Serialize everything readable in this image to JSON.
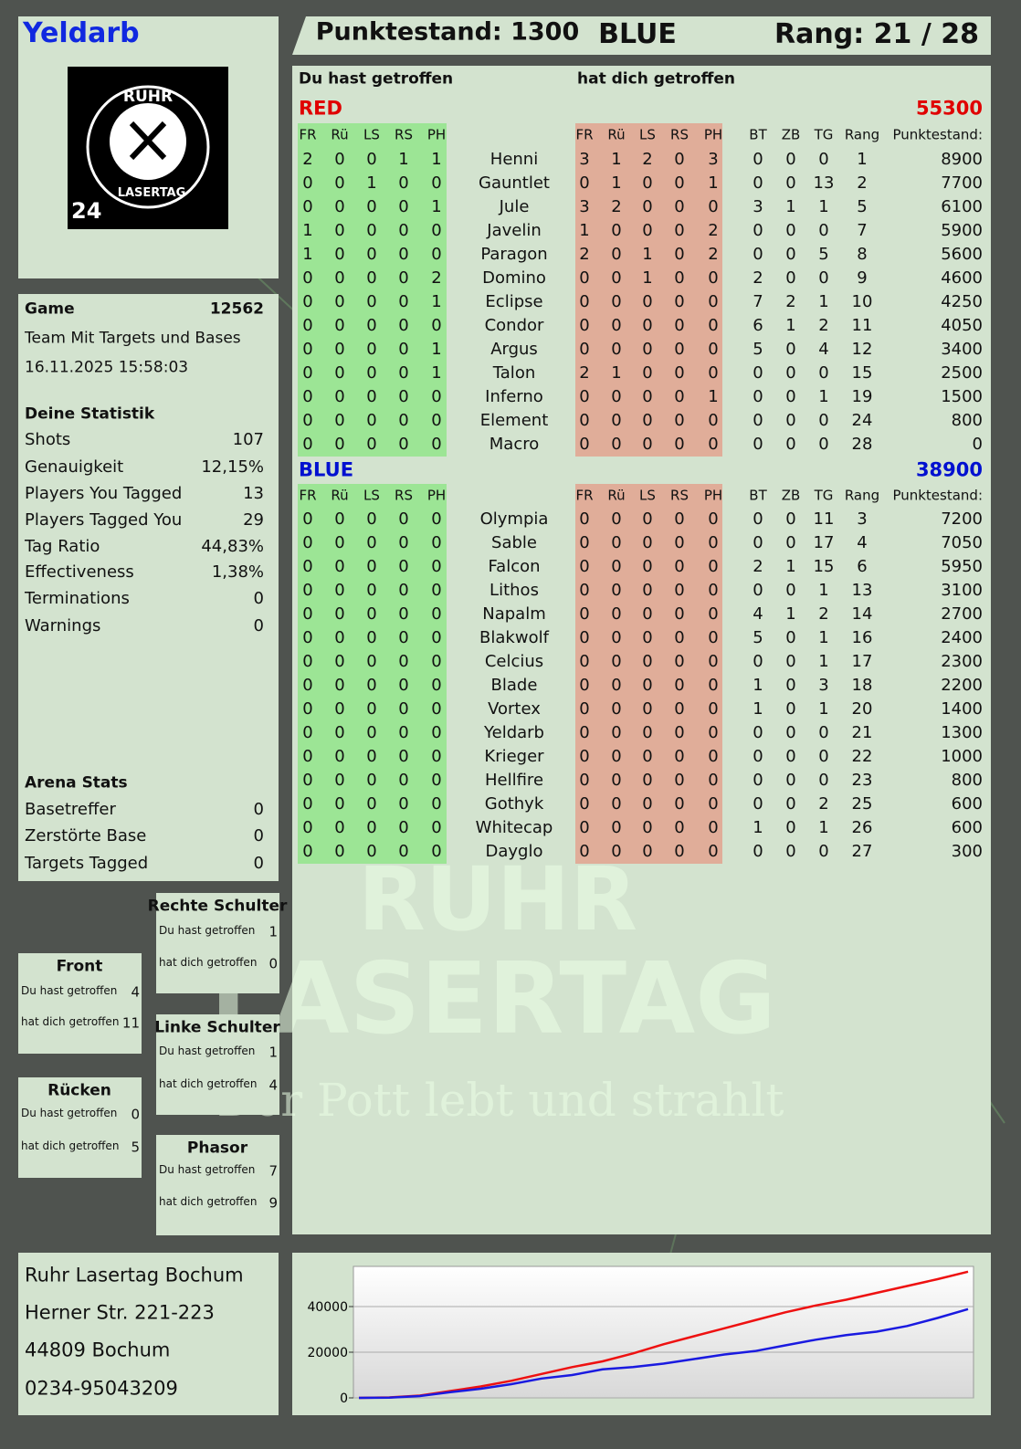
{
  "header": {
    "player": "Yeldarb",
    "score": "Punktestand: 1300",
    "team": "BLUE",
    "rank": "Rang: 21 / 28"
  },
  "logo": {
    "top": "RUHR",
    "bottom": "LASERTAG",
    "number": "24"
  },
  "game": {
    "label": "Game",
    "id": 12562,
    "mode": "Team Mit Targets und Bases",
    "date": "16.11.2025 15:58:03"
  },
  "stats": {
    "title": "Deine Statistik",
    "items": [
      {
        "label": "Shots",
        "value": 107
      },
      {
        "label": "Genauigkeit",
        "value": "12,15%"
      },
      {
        "label": "Players You Tagged",
        "value": 13
      },
      {
        "label": "Players Tagged You",
        "value": 29
      },
      {
        "label": "Tag Ratio",
        "value": "44,83%"
      },
      {
        "label": "Effectiveness",
        "value": "1,38%"
      },
      {
        "label": "Terminations",
        "value": 0
      },
      {
        "label": "Warnings",
        "value": 0
      }
    ]
  },
  "arena": {
    "title": "Arena Stats",
    "items": [
      {
        "label": "Basetreffer",
        "value": 0
      },
      {
        "label": "Zerstörte Base",
        "value": 0
      },
      {
        "label": "Targets Tagged",
        "value": 0
      }
    ]
  },
  "zones": [
    {
      "title": "Rechte Schulter",
      "hit": 1,
      "got": 0
    },
    {
      "title": "Front",
      "hit": 4,
      "got": 11
    },
    {
      "title": "Linke Schulter",
      "hit": 1,
      "got": 4
    },
    {
      "title": "Rücken",
      "hit": 0,
      "got": 5
    },
    {
      "title": "Phasor",
      "hit": 7,
      "got": 9
    }
  ],
  "zone_labels": {
    "hit": "Du hast getroffen",
    "got": "hat dich getroffen"
  },
  "table": {
    "hit_title": "Du hast getroffen",
    "got_title": "hat dich getroffen",
    "hit_columns": [
      "FR",
      "Rü",
      "LS",
      "RS",
      "PH"
    ],
    "stat_columns": [
      "BT",
      "ZB",
      "TG",
      "Rang",
      "Punktestand:"
    ],
    "teams": [
      {
        "name": "RED",
        "score": 55300,
        "color": "#e00000",
        "rows": [
          {
            "du": [
              2,
              0,
              0,
              1,
              1
            ],
            "name": "Henni",
            "dich": [
              3,
              1,
              2,
              0,
              3
            ],
            "stats": [
              0,
              0,
              0,
              1,
              8900
            ]
          },
          {
            "du": [
              0,
              0,
              1,
              0,
              0
            ],
            "name": "Gauntlet",
            "dich": [
              0,
              1,
              0,
              0,
              1
            ],
            "stats": [
              0,
              0,
              13,
              2,
              7700
            ]
          },
          {
            "du": [
              0,
              0,
              0,
              0,
              1
            ],
            "name": "Jule",
            "dich": [
              3,
              2,
              0,
              0,
              0
            ],
            "stats": [
              3,
              1,
              1,
              5,
              6100
            ]
          },
          {
            "du": [
              1,
              0,
              0,
              0,
              0
            ],
            "name": "Javelin",
            "dich": [
              1,
              0,
              0,
              0,
              2
            ],
            "stats": [
              0,
              0,
              0,
              7,
              5900
            ]
          },
          {
            "du": [
              1,
              0,
              0,
              0,
              0
            ],
            "name": "Paragon",
            "dich": [
              2,
              0,
              1,
              0,
              2
            ],
            "stats": [
              0,
              0,
              5,
              8,
              5600
            ]
          },
          {
            "du": [
              0,
              0,
              0,
              0,
              2
            ],
            "name": "Domino",
            "dich": [
              0,
              0,
              1,
              0,
              0
            ],
            "stats": [
              2,
              0,
              0,
              9,
              4600
            ]
          },
          {
            "du": [
              0,
              0,
              0,
              0,
              1
            ],
            "name": "Eclipse",
            "dich": [
              0,
              0,
              0,
              0,
              0
            ],
            "stats": [
              7,
              2,
              1,
              10,
              4250
            ]
          },
          {
            "du": [
              0,
              0,
              0,
              0,
              0
            ],
            "name": "Condor",
            "dich": [
              0,
              0,
              0,
              0,
              0
            ],
            "stats": [
              6,
              1,
              2,
              11,
              4050
            ]
          },
          {
            "du": [
              0,
              0,
              0,
              0,
              1
            ],
            "name": "Argus",
            "dich": [
              0,
              0,
              0,
              0,
              0
            ],
            "stats": [
              5,
              0,
              4,
              12,
              3400
            ]
          },
          {
            "du": [
              0,
              0,
              0,
              0,
              1
            ],
            "name": "Talon",
            "dich": [
              2,
              1,
              0,
              0,
              0
            ],
            "stats": [
              0,
              0,
              0,
              15,
              2500
            ]
          },
          {
            "du": [
              0,
              0,
              0,
              0,
              0
            ],
            "name": "Inferno",
            "dich": [
              0,
              0,
              0,
              0,
              1
            ],
            "stats": [
              0,
              0,
              1,
              19,
              1500
            ]
          },
          {
            "du": [
              0,
              0,
              0,
              0,
              0
            ],
            "name": "Element",
            "dich": [
              0,
              0,
              0,
              0,
              0
            ],
            "stats": [
              0,
              0,
              0,
              24,
              800
            ]
          },
          {
            "du": [
              0,
              0,
              0,
              0,
              0
            ],
            "name": "Macro",
            "dich": [
              0,
              0,
              0,
              0,
              0
            ],
            "stats": [
              0,
              0,
              0,
              28,
              0
            ]
          }
        ]
      },
      {
        "name": "BLUE",
        "score": 38900,
        "color": "#0010d0",
        "rows": [
          {
            "du": [
              0,
              0,
              0,
              0,
              0
            ],
            "name": "Olympia",
            "dich": [
              0,
              0,
              0,
              0,
              0
            ],
            "stats": [
              0,
              0,
              11,
              3,
              7200
            ]
          },
          {
            "du": [
              0,
              0,
              0,
              0,
              0
            ],
            "name": "Sable",
            "dich": [
              0,
              0,
              0,
              0,
              0
            ],
            "stats": [
              0,
              0,
              17,
              4,
              7050
            ]
          },
          {
            "du": [
              0,
              0,
              0,
              0,
              0
            ],
            "name": "Falcon",
            "dich": [
              0,
              0,
              0,
              0,
              0
            ],
            "stats": [
              2,
              1,
              15,
              6,
              5950
            ]
          },
          {
            "du": [
              0,
              0,
              0,
              0,
              0
            ],
            "name": "Lithos",
            "dich": [
              0,
              0,
              0,
              0,
              0
            ],
            "stats": [
              0,
              0,
              1,
              13,
              3100
            ]
          },
          {
            "du": [
              0,
              0,
              0,
              0,
              0
            ],
            "name": "Napalm",
            "dich": [
              0,
              0,
              0,
              0,
              0
            ],
            "stats": [
              4,
              1,
              2,
              14,
              2700
            ]
          },
          {
            "du": [
              0,
              0,
              0,
              0,
              0
            ],
            "name": "Blakwolf",
            "dich": [
              0,
              0,
              0,
              0,
              0
            ],
            "stats": [
              5,
              0,
              1,
              16,
              2400
            ]
          },
          {
            "du": [
              0,
              0,
              0,
              0,
              0
            ],
            "name": "Celcius",
            "dich": [
              0,
              0,
              0,
              0,
              0
            ],
            "stats": [
              0,
              0,
              1,
              17,
              2300
            ]
          },
          {
            "du": [
              0,
              0,
              0,
              0,
              0
            ],
            "name": "Blade",
            "dich": [
              0,
              0,
              0,
              0,
              0
            ],
            "stats": [
              1,
              0,
              3,
              18,
              2200
            ]
          },
          {
            "du": [
              0,
              0,
              0,
              0,
              0
            ],
            "name": "Vortex",
            "dich": [
              0,
              0,
              0,
              0,
              0
            ],
            "stats": [
              1,
              0,
              1,
              20,
              1400
            ]
          },
          {
            "du": [
              0,
              0,
              0,
              0,
              0
            ],
            "name": "Yeldarb",
            "dich": [
              0,
              0,
              0,
              0,
              0
            ],
            "stats": [
              0,
              0,
              0,
              21,
              1300
            ]
          },
          {
            "du": [
              0,
              0,
              0,
              0,
              0
            ],
            "name": "Krieger",
            "dich": [
              0,
              0,
              0,
              0,
              0
            ],
            "stats": [
              0,
              0,
              0,
              22,
              1000
            ]
          },
          {
            "du": [
              0,
              0,
              0,
              0,
              0
            ],
            "name": "Hellfire",
            "dich": [
              0,
              0,
              0,
              0,
              0
            ],
            "stats": [
              0,
              0,
              0,
              23,
              800
            ]
          },
          {
            "du": [
              0,
              0,
              0,
              0,
              0
            ],
            "name": "Gothyk",
            "dich": [
              0,
              0,
              0,
              0,
              0
            ],
            "stats": [
              0,
              0,
              2,
              25,
              600
            ]
          },
          {
            "du": [
              0,
              0,
              0,
              0,
              0
            ],
            "name": "Whitecap",
            "dich": [
              0,
              0,
              0,
              0,
              0
            ],
            "stats": [
              1,
              0,
              1,
              26,
              600
            ]
          },
          {
            "du": [
              0,
              0,
              0,
              0,
              0
            ],
            "name": "Dayglo",
            "dich": [
              0,
              0,
              0,
              0,
              0
            ],
            "stats": [
              0,
              0,
              0,
              27,
              300
            ]
          }
        ]
      }
    ]
  },
  "watermark": {
    "line1": "RUHR",
    "line2": "LASERTAG",
    "tagline": "Der Pott lebt und strahlt"
  },
  "address": [
    "Ruhr Lasertag Bochum",
    "Herner Str. 221-223",
    "44809 Bochum",
    "0234-95043209"
  ],
  "chart_data": {
    "type": "line",
    "ylim": [
      0,
      57600
    ],
    "yticks": [
      0,
      20000,
      40000
    ],
    "grid": true,
    "series": [
      {
        "color": "#ee1111",
        "values": [
          0,
          200,
          1000,
          3000,
          5000,
          7500,
          10500,
          13500,
          16000,
          19500,
          23500,
          27000,
          30500,
          34000,
          37500,
          40500,
          43000,
          46000,
          49000,
          52000,
          55300
        ]
      },
      {
        "color": "#1a1ae0",
        "values": [
          0,
          100,
          800,
          2500,
          4000,
          6000,
          8500,
          10000,
          12500,
          13500,
          15000,
          17000,
          19000,
          20500,
          23000,
          25500,
          27500,
          29000,
          31500,
          35000,
          38900
        ]
      }
    ]
  }
}
